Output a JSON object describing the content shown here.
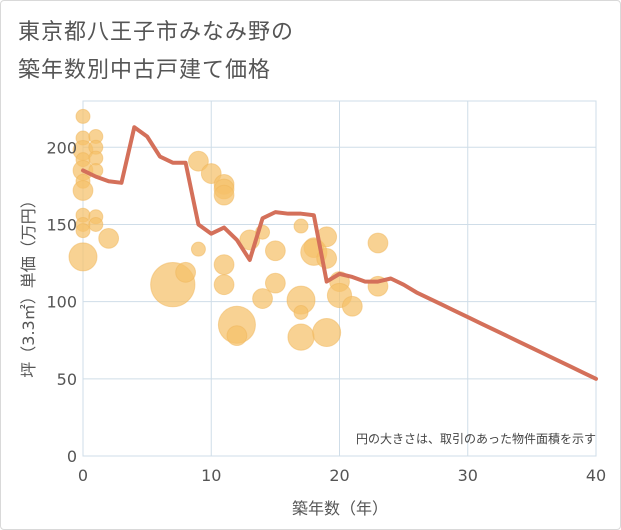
{
  "title_line1": "東京都八王子市みなみ野の",
  "title_line2": "築年数別中古戸建て価格",
  "chart_data": {
    "type": "scatter",
    "title": "東京都八王子市みなみ野の築年数別中古戸建て価格",
    "xlabel": "築年数（年）",
    "ylabel": "坪（3.3㎡）単価（万円）",
    "xlim": [
      0,
      40
    ],
    "ylim": [
      0,
      230
    ],
    "xticks": [
      0,
      10,
      20,
      30,
      40
    ],
    "yticks": [
      0,
      50,
      100,
      150,
      200
    ],
    "grid": true,
    "note": "円の大きさは、取引のあった物件面積を示す",
    "bubble_color": "#f5c06a",
    "line_color": "#d4705a",
    "bubbles": [
      {
        "x": 0,
        "y": 220,
        "s": 1
      },
      {
        "x": 0,
        "y": 206,
        "s": 1
      },
      {
        "x": 0,
        "y": 198,
        "s": 2
      },
      {
        "x": 0,
        "y": 192,
        "s": 1
      },
      {
        "x": 0,
        "y": 185,
        "s": 2
      },
      {
        "x": 0,
        "y": 178,
        "s": 1
      },
      {
        "x": 0,
        "y": 172,
        "s": 2
      },
      {
        "x": 0,
        "y": 156,
        "s": 1
      },
      {
        "x": 0,
        "y": 150,
        "s": 1
      },
      {
        "x": 0,
        "y": 146,
        "s": 1
      },
      {
        "x": 0,
        "y": 129,
        "s": 4
      },
      {
        "x": 1,
        "y": 207,
        "s": 1
      },
      {
        "x": 1,
        "y": 200,
        "s": 1
      },
      {
        "x": 1,
        "y": 193,
        "s": 1
      },
      {
        "x": 1,
        "y": 185,
        "s": 1
      },
      {
        "x": 1,
        "y": 155,
        "s": 1
      },
      {
        "x": 1,
        "y": 150,
        "s": 1
      },
      {
        "x": 2,
        "y": 141,
        "s": 2
      },
      {
        "x": 7,
        "y": 111,
        "s": 10
      },
      {
        "x": 8,
        "y": 119,
        "s": 2
      },
      {
        "x": 9,
        "y": 191,
        "s": 2
      },
      {
        "x": 9,
        "y": 134,
        "s": 1
      },
      {
        "x": 10,
        "y": 183,
        "s": 2
      },
      {
        "x": 11,
        "y": 176,
        "s": 2
      },
      {
        "x": 11,
        "y": 173,
        "s": 2
      },
      {
        "x": 11,
        "y": 169,
        "s": 2
      },
      {
        "x": 11,
        "y": 124,
        "s": 2
      },
      {
        "x": 11,
        "y": 111,
        "s": 2
      },
      {
        "x": 12,
        "y": 85,
        "s": 7
      },
      {
        "x": 12,
        "y": 78,
        "s": 2
      },
      {
        "x": 13,
        "y": 140,
        "s": 2
      },
      {
        "x": 14,
        "y": 145,
        "s": 1
      },
      {
        "x": 14,
        "y": 102,
        "s": 2
      },
      {
        "x": 15,
        "y": 133,
        "s": 2
      },
      {
        "x": 15,
        "y": 112,
        "s": 2
      },
      {
        "x": 17,
        "y": 149,
        "s": 1
      },
      {
        "x": 17,
        "y": 101,
        "s": 4
      },
      {
        "x": 17,
        "y": 93,
        "s": 1
      },
      {
        "x": 17,
        "y": 77,
        "s": 3.5
      },
      {
        "x": 18,
        "y": 135,
        "s": 2
      },
      {
        "x": 18,
        "y": 132,
        "s": 3.5
      },
      {
        "x": 19,
        "y": 142,
        "s": 2
      },
      {
        "x": 19,
        "y": 128,
        "s": 2
      },
      {
        "x": 19,
        "y": 80,
        "s": 4
      },
      {
        "x": 20,
        "y": 113,
        "s": 2
      },
      {
        "x": 20,
        "y": 104,
        "s": 3
      },
      {
        "x": 21,
        "y": 97,
        "s": 2
      },
      {
        "x": 23,
        "y": 138,
        "s": 2
      },
      {
        "x": 23,
        "y": 110,
        "s": 2
      }
    ],
    "series": [
      {
        "x": [
          0,
          1,
          2,
          3,
          4,
          5,
          6,
          7,
          8,
          9,
          10,
          11,
          12,
          13,
          14,
          15,
          16,
          17,
          18,
          19,
          20,
          21,
          22,
          23,
          24,
          25,
          26,
          27,
          28,
          29,
          30,
          31,
          32,
          33,
          34,
          35,
          36,
          37,
          38,
          39,
          40
        ],
        "values": [
          185,
          181,
          178,
          177,
          213,
          207,
          194,
          190,
          190,
          150,
          144,
          148,
          140,
          127,
          154,
          158,
          157,
          157,
          156,
          113,
          118,
          116,
          113,
          113,
          115,
          111,
          106,
          102,
          98,
          94,
          90,
          86,
          82,
          78,
          74,
          70,
          66,
          62,
          58,
          54,
          50
        ]
      }
    ]
  }
}
